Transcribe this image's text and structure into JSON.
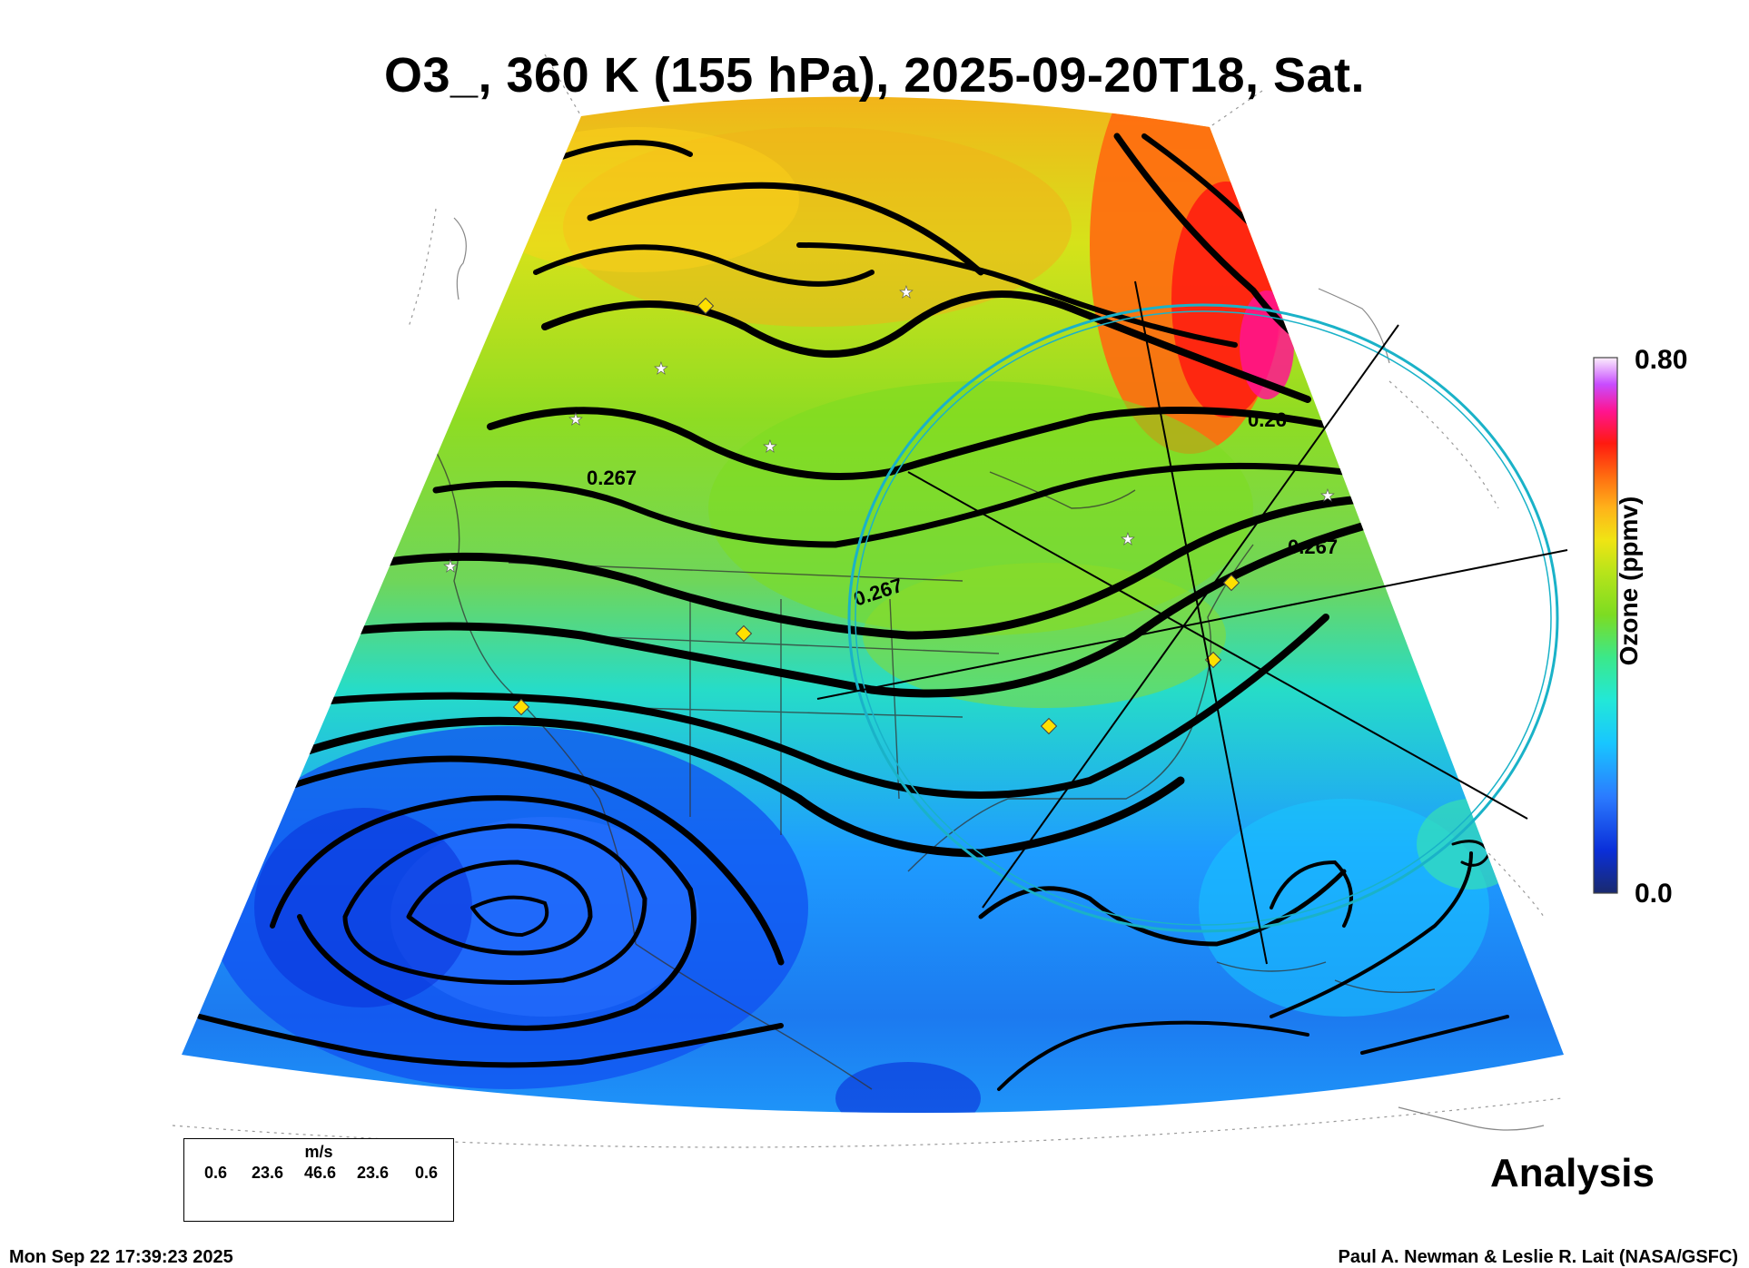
{
  "title": "O3_, 360 K (155 hPa), 2025-09-20T18, Sat.",
  "colorbar": {
    "max_label": "0.80",
    "min_label": "0.0",
    "axis_title": "Ozone (ppmv)",
    "colors": [
      "#1a2a6e",
      "#0a2fd9",
      "#2b7bff",
      "#18c6ff",
      "#22e8d8",
      "#3be88a",
      "#7ddc22",
      "#b8e41a",
      "#f0e414",
      "#ffb21a",
      "#ff6a10",
      "#ff1a10",
      "#ff1490",
      "#c84cff",
      "#f0c8f8",
      "#ffffff"
    ]
  },
  "contour_labels": [
    "0.267",
    "0.267",
    "0.26",
    "0.267"
  ],
  "wind_legend": {
    "unit": "m/s",
    "ticks": [
      "0.6",
      "23.6",
      "46.6",
      "23.6",
      "0.6"
    ]
  },
  "analysis_label": "Analysis",
  "timestamp": "Mon Sep 22 17:39:23 2025",
  "credit": "Paul A. Newman & Leslie R. Lait (NASA/GSFC)"
}
